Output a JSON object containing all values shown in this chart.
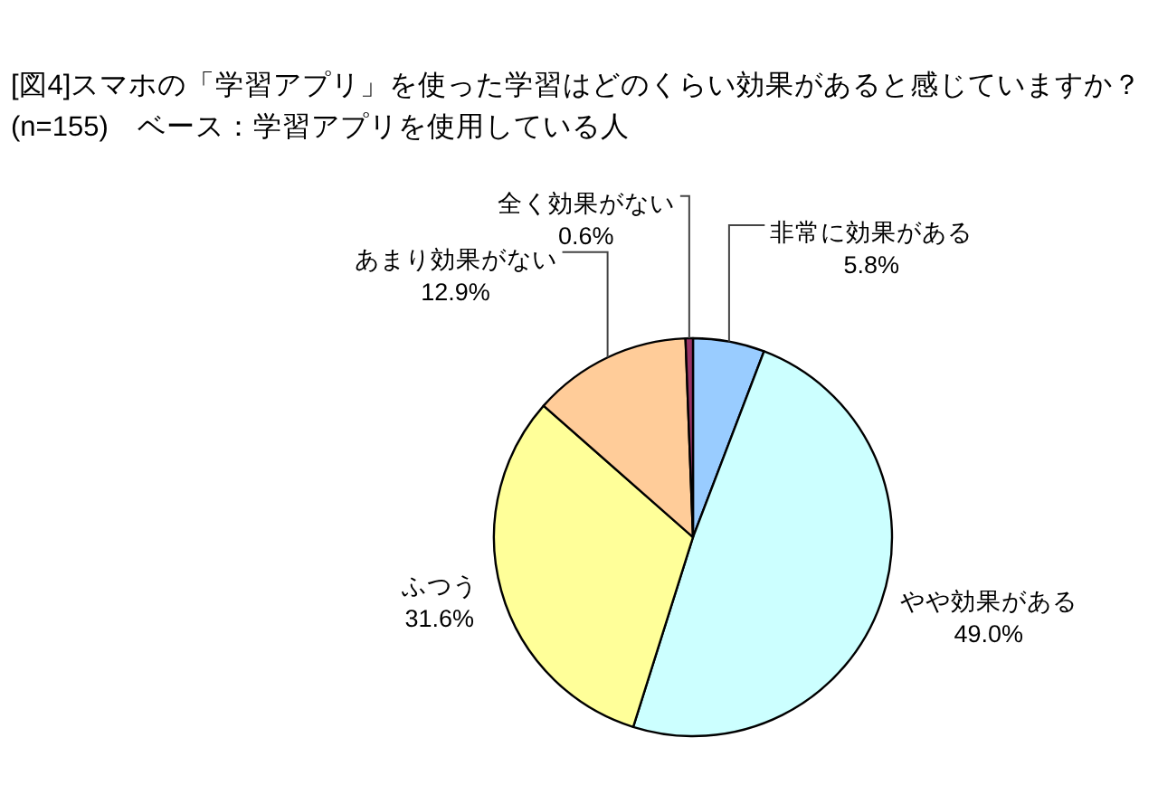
{
  "chart_data": {
    "type": "pie",
    "title": "[図4]スマホの「学習アプリ」を使った学習はどのくらい効果があると感じていますか？",
    "subtitle": "(n=155)　ベース：学習アプリを使用している人",
    "categories": [
      "非常に効果がある",
      "やや効果がある",
      "ふつう",
      "あまり効果がない",
      "全く効果がない"
    ],
    "values": [
      5.8,
      49.0,
      31.6,
      12.9,
      0.6
    ],
    "value_labels": [
      "5.8%",
      "49.0%",
      "31.6%",
      "12.9%",
      "0.6%"
    ],
    "colors": [
      "#99ccff",
      "#ccffff",
      "#ffff99",
      "#ffcc99",
      "#993366"
    ]
  }
}
